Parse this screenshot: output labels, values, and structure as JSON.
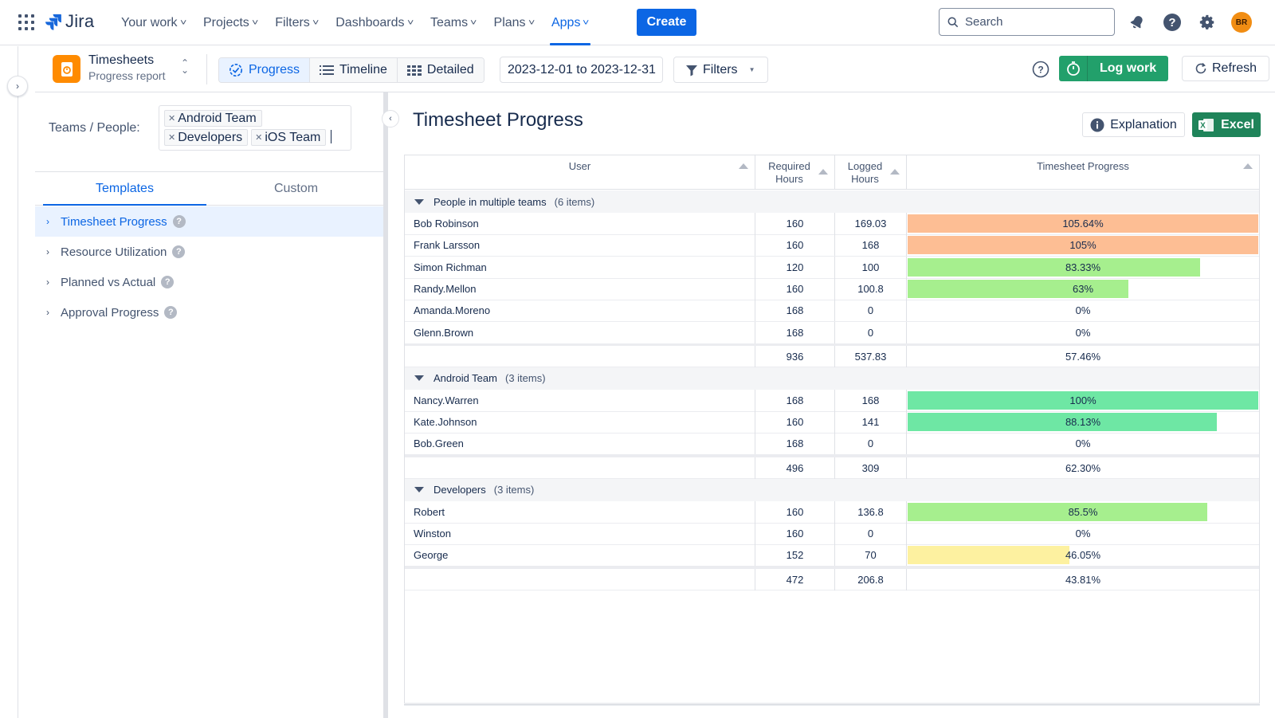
{
  "topnav": {
    "logo_text": "Jira",
    "items": [
      {
        "label": "Your work"
      },
      {
        "label": "Projects"
      },
      {
        "label": "Filters"
      },
      {
        "label": "Dashboards"
      },
      {
        "label": "Teams"
      },
      {
        "label": "Plans"
      },
      {
        "label": "Apps",
        "active": true
      }
    ],
    "create_label": "Create",
    "search_placeholder": "Search",
    "avatar_initials": "BR"
  },
  "subbar": {
    "app_title": "Timesheets",
    "app_subtitle": "Progress report",
    "views": [
      {
        "label": "Progress",
        "active": true
      },
      {
        "label": "Timeline"
      },
      {
        "label": "Detailed"
      }
    ],
    "date_range": "2023-12-01 to 2023-12-31",
    "filters_label": "Filters",
    "logwork_label": "Log work",
    "refresh_label": "Refresh"
  },
  "leftpanel": {
    "teams_label": "Teams / People:",
    "tags": [
      "Android Team",
      "Developers",
      "iOS Team"
    ],
    "tabs": [
      {
        "label": "Templates",
        "active": true
      },
      {
        "label": "Custom"
      }
    ],
    "templates": [
      {
        "label": "Timesheet Progress",
        "active": true
      },
      {
        "label": "Resource Utilization"
      },
      {
        "label": "Planned vs Actual"
      },
      {
        "label": "Approval Progress"
      }
    ]
  },
  "main": {
    "title": "Timesheet Progress",
    "explanation_label": "Explanation",
    "excel_label": "Excel",
    "columns": {
      "user": "User",
      "required": "Required Hours",
      "logged": "Logged Hours",
      "progress": "Timesheet Progress"
    },
    "groups": [
      {
        "name": "People in multiple teams",
        "count": "(6 items)",
        "rows": [
          {
            "user": "Bob Robinson",
            "required": "160",
            "logged": "169.03",
            "progress": "105.64%",
            "pct": 100,
            "color": "#fdbe94"
          },
          {
            "user": "Frank Larsson",
            "required": "160",
            "logged": "168",
            "progress": "105%",
            "pct": 100,
            "color": "#fdbe94"
          },
          {
            "user": "Simon Richman",
            "required": "120",
            "logged": "100",
            "progress": "83.33%",
            "pct": 83.33,
            "color": "#a6ef8e"
          },
          {
            "user": "Randy.Mellon",
            "required": "160",
            "logged": "100.8",
            "progress": "63%",
            "pct": 63,
            "color": "#a6ef8e"
          },
          {
            "user": "Amanda.Moreno",
            "required": "168",
            "logged": "0",
            "progress": "0%",
            "pct": 0,
            "color": "#a6ef8e"
          },
          {
            "user": "Glenn.Brown",
            "required": "168",
            "logged": "0",
            "progress": "0%",
            "pct": 0,
            "color": "#a6ef8e"
          }
        ],
        "total": {
          "required": "936",
          "logged": "537.83",
          "progress": "57.46%"
        }
      },
      {
        "name": "Android Team",
        "count": "(3 items)",
        "rows": [
          {
            "user": "Nancy.Warren",
            "required": "168",
            "logged": "168",
            "progress": "100%",
            "pct": 100,
            "color": "#6ee7a4"
          },
          {
            "user": "Kate.Johnson",
            "required": "160",
            "logged": "141",
            "progress": "88.13%",
            "pct": 88.13,
            "color": "#6ee7a4"
          },
          {
            "user": "Bob.Green",
            "required": "168",
            "logged": "0",
            "progress": "0%",
            "pct": 0,
            "color": "#6ee7a4"
          }
        ],
        "total": {
          "required": "496",
          "logged": "309",
          "progress": "62.30%"
        }
      },
      {
        "name": "Developers",
        "count": "(3 items)",
        "rows": [
          {
            "user": "Robert",
            "required": "160",
            "logged": "136.8",
            "progress": "85.5%",
            "pct": 85.5,
            "color": "#a6ef8e"
          },
          {
            "user": "Winston",
            "required": "160",
            "logged": "0",
            "progress": "0%",
            "pct": 0,
            "color": "#a6ef8e"
          },
          {
            "user": "George",
            "required": "152",
            "logged": "70",
            "progress": "46.05%",
            "pct": 46.05,
            "color": "#fdf1a0"
          }
        ],
        "total": {
          "required": "472",
          "logged": "206.8",
          "progress": "43.81%"
        }
      }
    ]
  }
}
